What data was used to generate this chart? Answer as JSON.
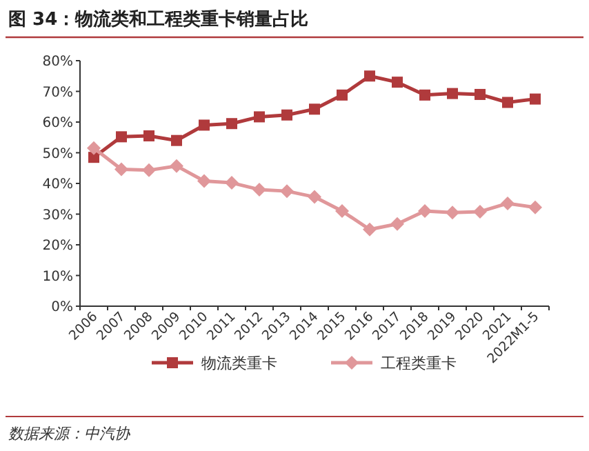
{
  "chart_data": {
    "type": "line",
    "title": "图 34：物流类和工程类重卡销量占比",
    "categories": [
      "2006",
      "2007",
      "2008",
      "2009",
      "2010",
      "2011",
      "2012",
      "2013",
      "2014",
      "2015",
      "2016",
      "2017",
      "2018",
      "2019",
      "2020",
      "2021",
      "2022M1-5"
    ],
    "series": [
      {
        "name": "物流类重卡",
        "color": "#b03a3c",
        "marker": "square",
        "values": [
          48.5,
          55.2,
          55.5,
          54,
          59,
          59.5,
          61.7,
          62.3,
          64.2,
          68.8,
          75,
          73,
          68.8,
          69.3,
          69,
          66.4,
          67.5
        ]
      },
      {
        "name": "工程类重卡",
        "color": "#e0979a",
        "marker": "diamond",
        "values": [
          51.5,
          44.6,
          44.3,
          45.7,
          40.8,
          40.2,
          38,
          37.5,
          35.6,
          31,
          25,
          26.8,
          31,
          30.5,
          30.8,
          33.5,
          32.2
        ]
      }
    ],
    "ylim": [
      0,
      80
    ],
    "yticks": [
      {
        "value": 0,
        "label": "0%"
      },
      {
        "value": 10,
        "label": "10%"
      },
      {
        "value": 20,
        "label": "20%"
      },
      {
        "value": 30,
        "label": "30%"
      },
      {
        "value": 40,
        "label": "40%"
      },
      {
        "value": 50,
        "label": "50%"
      },
      {
        "value": 60,
        "label": "60%"
      },
      {
        "value": 70,
        "label": "70%"
      },
      {
        "value": 80,
        "label": "80%"
      }
    ],
    "grid": false,
    "legend": "bottom",
    "annotations": [
      "数据来源：中汽协"
    ]
  }
}
